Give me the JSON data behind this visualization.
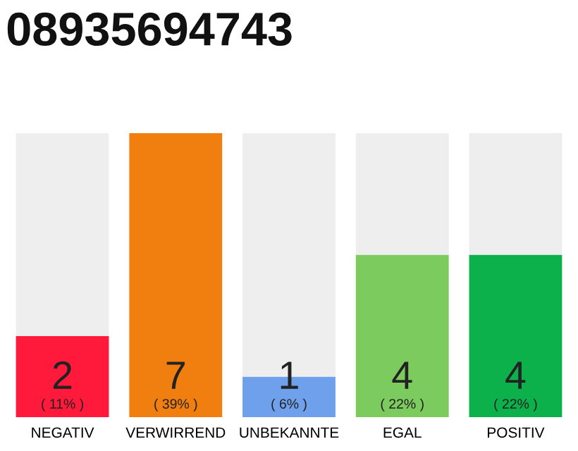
{
  "chart_data": {
    "type": "bar",
    "title": "08935694743",
    "stacked": true,
    "categories": [
      "NEGATIV",
      "VERWIRREND",
      "UNBEKANNTE",
      "EGAL",
      "POSITIV"
    ],
    "series": [
      {
        "colors": [
          "#ff1a3c",
          "#f07f0f",
          "#6ea0ec",
          "#7ccb5e",
          "#0db14b"
        ],
        "values": [
          2,
          7,
          1,
          4,
          4
        ],
        "value_labels": [
          "2\n( 11% )",
          "7\n( 39% )",
          "1\n( 6% )",
          "4\n( 22% )",
          "4\n( 22% )"
        ]
      },
      {
        "color": "#eeeeee",
        "values": [
          5,
          0,
          6,
          3,
          3
        ]
      }
    ],
    "ylim": [
      0,
      7
    ],
    "tick_labels": "x",
    "grid": false,
    "legend": false
  }
}
